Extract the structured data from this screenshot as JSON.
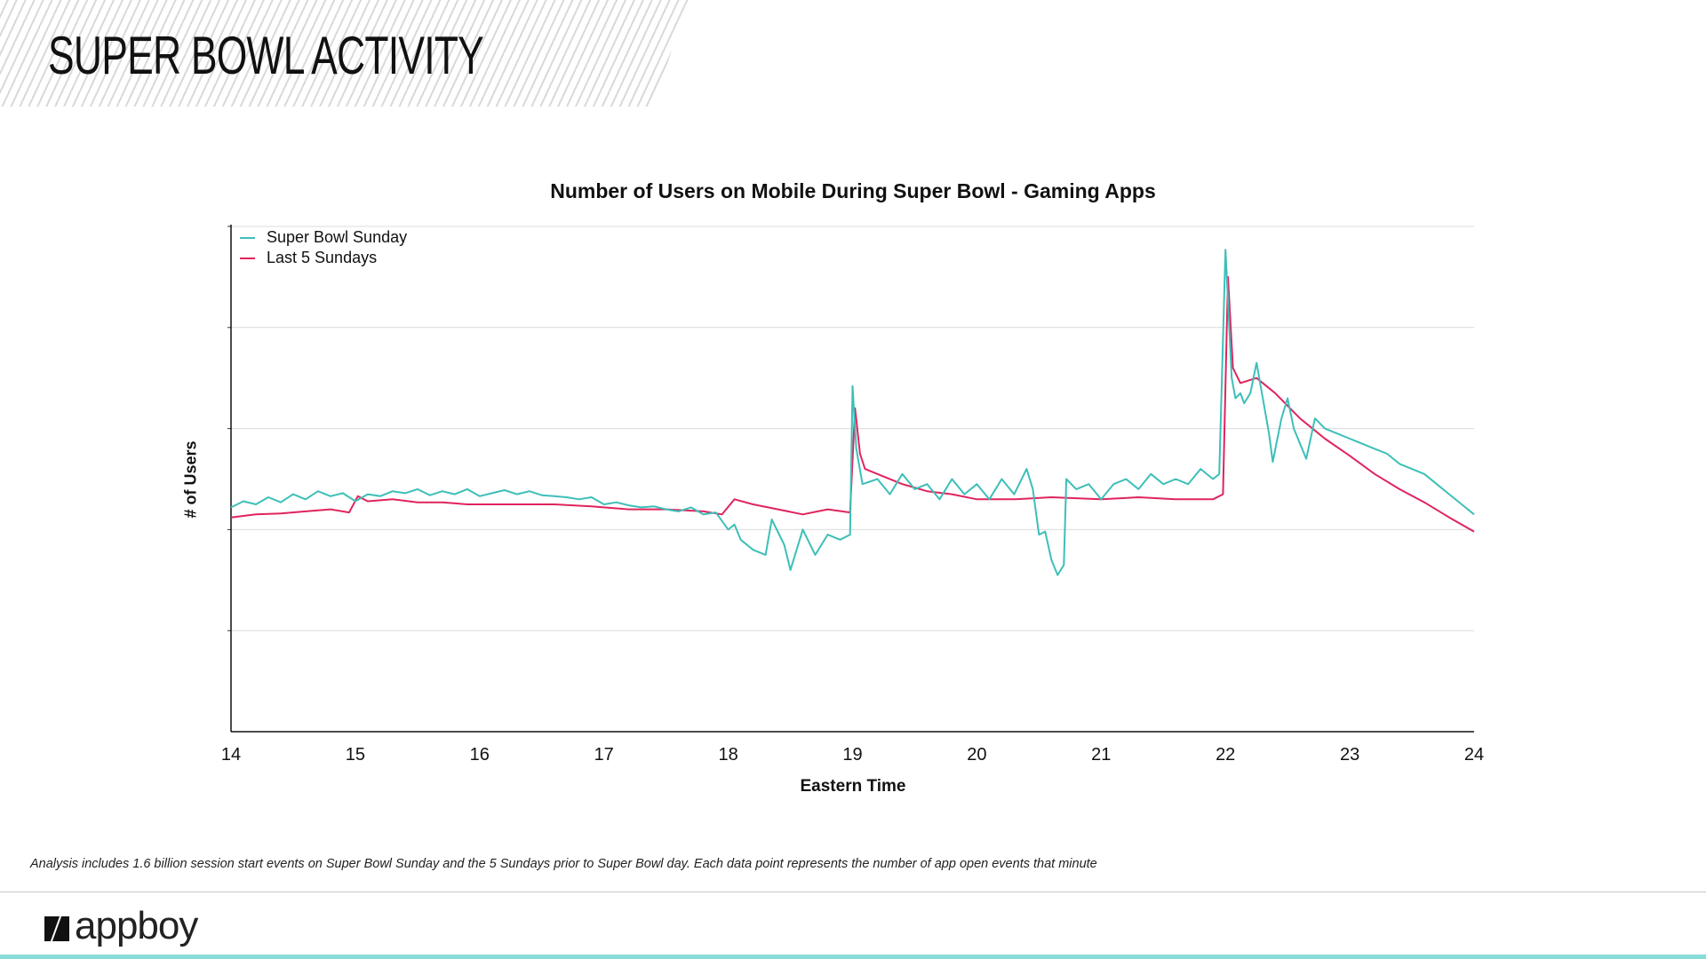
{
  "header": {
    "title": "SUPER BOWL ACTIVITY"
  },
  "footnote": "Analysis includes 1.6 billion session start events on Super Bowl Sunday and the 5 Sundays prior to Super Bowl day.  Each data point represents the number of app open events that minute",
  "logo": {
    "text": "appboy"
  },
  "colors": {
    "super_bowl": "#3dbfb8",
    "last5": "#e0245e",
    "accent_bar": "#86ddd8"
  },
  "chart_data": {
    "type": "line",
    "title": "Number of Users on Mobile During Super Bowl - Gaming Apps",
    "xlabel": "Eastern Time",
    "ylabel": "# of Users",
    "xlim": [
      14,
      24
    ],
    "ylim": [
      0,
      5
    ],
    "x_ticks": [
      "14",
      "15",
      "16",
      "17",
      "18",
      "19",
      "20",
      "21",
      "22",
      "23",
      "24"
    ],
    "y_ticks_labeled": false,
    "grid": "horizontal",
    "legend": "top-left",
    "series": [
      {
        "name": "Super Bowl Sunday",
        "color": "#3dbfb8",
        "points": [
          [
            14,
            2.22
          ],
          [
            14.1,
            2.28
          ],
          [
            14.2,
            2.25
          ],
          [
            14.3,
            2.32
          ],
          [
            14.4,
            2.27
          ],
          [
            14.5,
            2.35
          ],
          [
            14.6,
            2.3
          ],
          [
            14.7,
            2.38
          ],
          [
            14.8,
            2.33
          ],
          [
            14.9,
            2.36
          ],
          [
            15,
            2.28
          ],
          [
            15.1,
            2.35
          ],
          [
            15.2,
            2.33
          ],
          [
            15.3,
            2.38
          ],
          [
            15.4,
            2.36
          ],
          [
            15.5,
            2.4
          ],
          [
            15.6,
            2.34
          ],
          [
            15.7,
            2.38
          ],
          [
            15.8,
            2.35
          ],
          [
            15.9,
            2.4
          ],
          [
            16,
            2.33
          ],
          [
            16.1,
            2.36
          ],
          [
            16.2,
            2.39
          ],
          [
            16.3,
            2.35
          ],
          [
            16.4,
            2.38
          ],
          [
            16.5,
            2.34
          ],
          [
            16.6,
            2.33
          ],
          [
            16.7,
            2.32
          ],
          [
            16.8,
            2.3
          ],
          [
            16.9,
            2.32
          ],
          [
            17,
            2.25
          ],
          [
            17.1,
            2.27
          ],
          [
            17.2,
            2.24
          ],
          [
            17.3,
            2.22
          ],
          [
            17.4,
            2.23
          ],
          [
            17.5,
            2.2
          ],
          [
            17.6,
            2.18
          ],
          [
            17.7,
            2.22
          ],
          [
            17.8,
            2.15
          ],
          [
            17.9,
            2.17
          ],
          [
            18,
            2.0
          ],
          [
            18.05,
            2.05
          ],
          [
            18.1,
            1.9
          ],
          [
            18.2,
            1.8
          ],
          [
            18.3,
            1.75
          ],
          [
            18.35,
            2.1
          ],
          [
            18.45,
            1.85
          ],
          [
            18.5,
            1.6
          ],
          [
            18.6,
            2.0
          ],
          [
            18.7,
            1.75
          ],
          [
            18.8,
            1.95
          ],
          [
            18.9,
            1.9
          ],
          [
            18.98,
            1.95
          ],
          [
            19.0,
            3.42
          ],
          [
            19.03,
            2.8
          ],
          [
            19.08,
            2.45
          ],
          [
            19.2,
            2.5
          ],
          [
            19.3,
            2.35
          ],
          [
            19.4,
            2.55
          ],
          [
            19.5,
            2.4
          ],
          [
            19.6,
            2.45
          ],
          [
            19.7,
            2.3
          ],
          [
            19.8,
            2.5
          ],
          [
            19.9,
            2.35
          ],
          [
            20,
            2.45
          ],
          [
            20.1,
            2.3
          ],
          [
            20.2,
            2.5
          ],
          [
            20.3,
            2.35
          ],
          [
            20.4,
            2.6
          ],
          [
            20.45,
            2.4
          ],
          [
            20.5,
            1.95
          ],
          [
            20.55,
            1.98
          ],
          [
            20.6,
            1.7
          ],
          [
            20.65,
            1.55
          ],
          [
            20.7,
            1.65
          ],
          [
            20.72,
            2.5
          ],
          [
            20.8,
            2.4
          ],
          [
            20.9,
            2.45
          ],
          [
            21,
            2.3
          ],
          [
            21.1,
            2.45
          ],
          [
            21.2,
            2.5
          ],
          [
            21.3,
            2.4
          ],
          [
            21.4,
            2.55
          ],
          [
            21.5,
            2.45
          ],
          [
            21.6,
            2.5
          ],
          [
            21.7,
            2.45
          ],
          [
            21.8,
            2.6
          ],
          [
            21.9,
            2.5
          ],
          [
            21.95,
            2.55
          ],
          [
            22.0,
            4.77
          ],
          [
            22.05,
            3.5
          ],
          [
            22.08,
            3.3
          ],
          [
            22.12,
            3.35
          ],
          [
            22.15,
            3.25
          ],
          [
            22.2,
            3.35
          ],
          [
            22.25,
            3.65
          ],
          [
            22.3,
            3.3
          ],
          [
            22.35,
            2.95
          ],
          [
            22.38,
            2.67
          ],
          [
            22.45,
            3.1
          ],
          [
            22.5,
            3.3
          ],
          [
            22.55,
            3.0
          ],
          [
            22.6,
            2.85
          ],
          [
            22.65,
            2.7
          ],
          [
            22.72,
            3.1
          ],
          [
            22.8,
            3.0
          ],
          [
            22.9,
            2.95
          ],
          [
            23,
            2.9
          ],
          [
            23.1,
            2.85
          ],
          [
            23.2,
            2.8
          ],
          [
            23.3,
            2.75
          ],
          [
            23.4,
            2.65
          ],
          [
            23.5,
            2.6
          ],
          [
            23.6,
            2.55
          ],
          [
            23.7,
            2.45
          ],
          [
            23.8,
            2.35
          ],
          [
            23.9,
            2.25
          ],
          [
            24,
            2.15
          ]
        ]
      },
      {
        "name": "Last 5 Sundays",
        "color": "#e0245e",
        "points": [
          [
            14,
            2.12
          ],
          [
            14.2,
            2.15
          ],
          [
            14.4,
            2.16
          ],
          [
            14.6,
            2.18
          ],
          [
            14.8,
            2.2
          ],
          [
            14.95,
            2.17
          ],
          [
            15.02,
            2.33
          ],
          [
            15.1,
            2.28
          ],
          [
            15.3,
            2.3
          ],
          [
            15.5,
            2.27
          ],
          [
            15.7,
            2.27
          ],
          [
            15.9,
            2.25
          ],
          [
            16,
            2.25
          ],
          [
            16.3,
            2.25
          ],
          [
            16.6,
            2.25
          ],
          [
            16.9,
            2.23
          ],
          [
            17.2,
            2.2
          ],
          [
            17.5,
            2.2
          ],
          [
            17.8,
            2.18
          ],
          [
            17.95,
            2.15
          ],
          [
            18.05,
            2.3
          ],
          [
            18.2,
            2.25
          ],
          [
            18.4,
            2.2
          ],
          [
            18.6,
            2.15
          ],
          [
            18.8,
            2.2
          ],
          [
            18.98,
            2.17
          ],
          [
            19.02,
            3.2
          ],
          [
            19.06,
            2.75
          ],
          [
            19.1,
            2.6
          ],
          [
            19.2,
            2.55
          ],
          [
            19.4,
            2.45
          ],
          [
            19.6,
            2.38
          ],
          [
            19.8,
            2.35
          ],
          [
            20,
            2.3
          ],
          [
            20.3,
            2.3
          ],
          [
            20.6,
            2.32
          ],
          [
            21,
            2.3
          ],
          [
            21.3,
            2.32
          ],
          [
            21.6,
            2.3
          ],
          [
            21.9,
            2.3
          ],
          [
            21.98,
            2.35
          ],
          [
            22.02,
            4.5
          ],
          [
            22.06,
            3.6
          ],
          [
            22.12,
            3.45
          ],
          [
            22.25,
            3.5
          ],
          [
            22.4,
            3.35
          ],
          [
            22.6,
            3.1
          ],
          [
            22.8,
            2.9
          ],
          [
            23,
            2.73
          ],
          [
            23.2,
            2.55
          ],
          [
            23.4,
            2.4
          ],
          [
            23.6,
            2.27
          ],
          [
            23.8,
            2.12
          ],
          [
            24,
            1.98
          ]
        ]
      }
    ]
  }
}
